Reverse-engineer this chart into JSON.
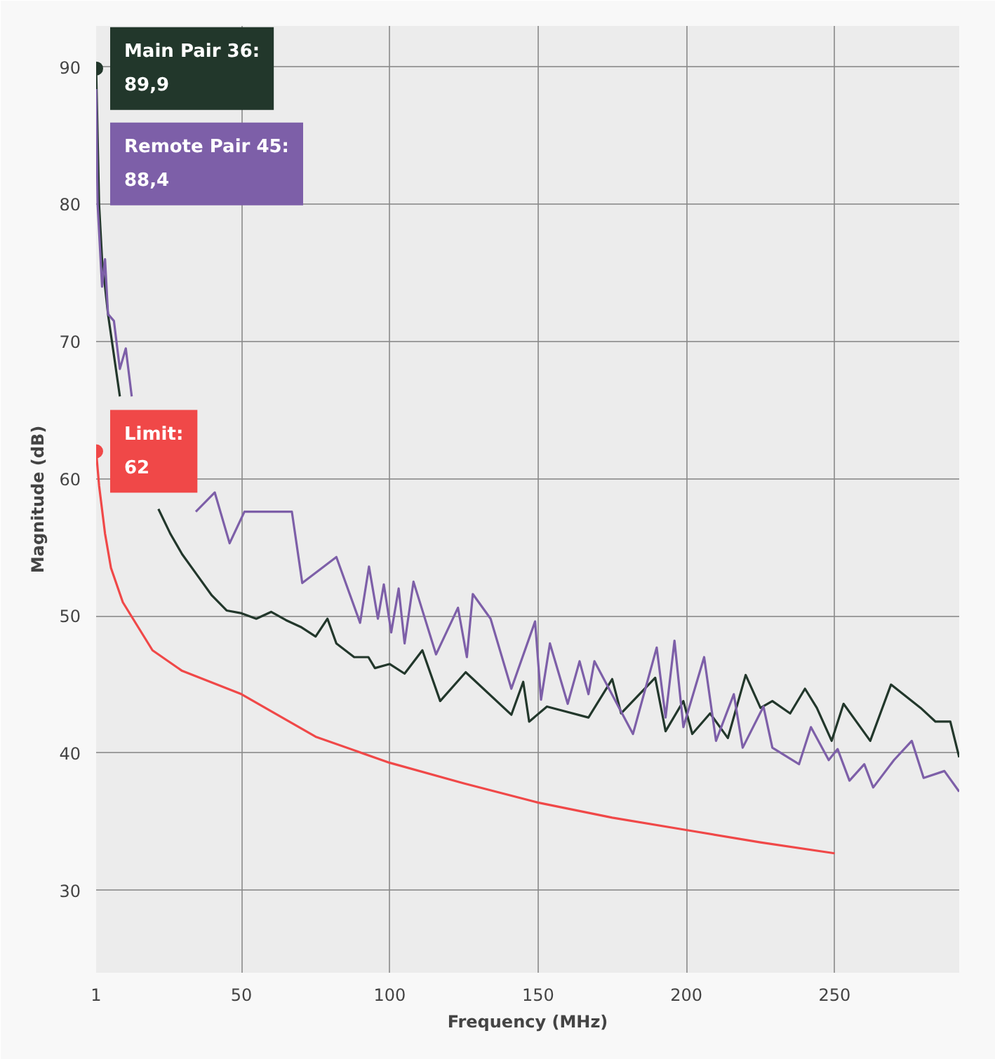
{
  "chart_data": {
    "type": "line",
    "xlabel": "Frequency (MHz)",
    "ylabel": "Magnitude (dB)",
    "xlim": [
      1,
      292
    ],
    "ylim": [
      24,
      93
    ],
    "xticks": [
      {
        "value": 1,
        "label": "1"
      },
      50,
      100,
      150,
      200,
      250
    ],
    "yticks": [
      30,
      40,
      50,
      60,
      70,
      80,
      90
    ],
    "grid": true,
    "line_style": "solid",
    "series": [
      {
        "color": "#22372b",
        "x": [
          1,
          2,
          3,
          5,
          7,
          9,
          11,
          13,
          15,
          18,
          22,
          26,
          30,
          35,
          40,
          45,
          50,
          55,
          60,
          65,
          70,
          75,
          79,
          82,
          88,
          92.8,
          95,
          100,
          105,
          111,
          117,
          125.6,
          141,
          145,
          147,
          153,
          167,
          175,
          178,
          189.5,
          193,
          199,
          202,
          208,
          214,
          220,
          225,
          229,
          235,
          240,
          244,
          249,
          253,
          262,
          269,
          279,
          284,
          289,
          292
        ],
        "values": [
          89.9,
          80,
          76,
          72,
          69,
          66,
          null,
          null,
          null,
          null,
          57.8,
          56,
          54.5,
          53,
          51.5,
          50.4,
          50.2,
          49.8,
          50.3,
          49.7,
          49.2,
          48.5,
          49.8,
          48,
          47,
          47,
          46.2,
          46.5,
          45.8,
          47.5,
          43.8,
          45.9,
          42.8,
          45.2,
          42.3,
          43.4,
          42.6,
          45.4,
          42.9,
          45.5,
          41.6,
          43.8,
          41.4,
          42.9,
          41.1,
          45.7,
          43.3,
          43.8,
          42.9,
          44.7,
          43.3,
          40.9,
          43.6,
          40.9,
          45,
          43.3,
          42.3,
          42.3,
          39.7
        ]
      },
      {
        "color": "#7d5fa8",
        "x": [
          1,
          1.5,
          3,
          4,
          5,
          7,
          9,
          11,
          13,
          15,
          17,
          22,
          29.6,
          34.6,
          41,
          46,
          51,
          67,
          70.5,
          82,
          90,
          93,
          96,
          98,
          100.5,
          103,
          105,
          108,
          115.6,
          123,
          126,
          128,
          134,
          141,
          149,
          151,
          154,
          160,
          164,
          167,
          169,
          182,
          190,
          193,
          196,
          199,
          206,
          210,
          216,
          219,
          226,
          229,
          238,
          242,
          248,
          251,
          255,
          260,
          263,
          270,
          276,
          280,
          287,
          292
        ],
        "values": [
          88.4,
          80,
          74,
          76,
          72,
          71.5,
          68,
          69.5,
          66,
          null,
          null,
          null,
          null,
          57.6,
          59,
          55.3,
          57.6,
          57.6,
          52.4,
          54.3,
          49.5,
          53.6,
          49.8,
          52.3,
          48.8,
          52,
          48,
          52.5,
          47.2,
          50.6,
          47,
          51.6,
          49.8,
          44.7,
          49.6,
          43.9,
          48,
          43.6,
          46.7,
          44.3,
          46.7,
          41.4,
          47.7,
          42.6,
          48.2,
          41.9,
          47,
          40.9,
          44.3,
          40.4,
          43.4,
          40.4,
          39.2,
          41.9,
          39.5,
          40.3,
          38,
          39.2,
          37.5,
          39.5,
          40.9,
          38.2,
          38.7,
          37.2
        ]
      },
      {
        "color": "#f04848",
        "x": [
          1,
          2,
          4,
          6,
          10,
          20,
          30,
          50,
          75,
          100,
          125,
          150,
          175,
          200,
          225,
          250
        ],
        "values": [
          62,
          59.5,
          56,
          53.5,
          51,
          47.5,
          46,
          44.3,
          41.2,
          39.3,
          37.8,
          36.4,
          35.3,
          34.4,
          33.5,
          32.7
        ]
      }
    ],
    "annotations": [
      {
        "text": "Main Pair 36: 89,9",
        "x": 1,
        "y": 89.9
      },
      "Remote Pair 45: 88,4",
      {
        "text": "Limit: 62",
        "x": 1,
        "y": 62
      }
    ]
  }
}
